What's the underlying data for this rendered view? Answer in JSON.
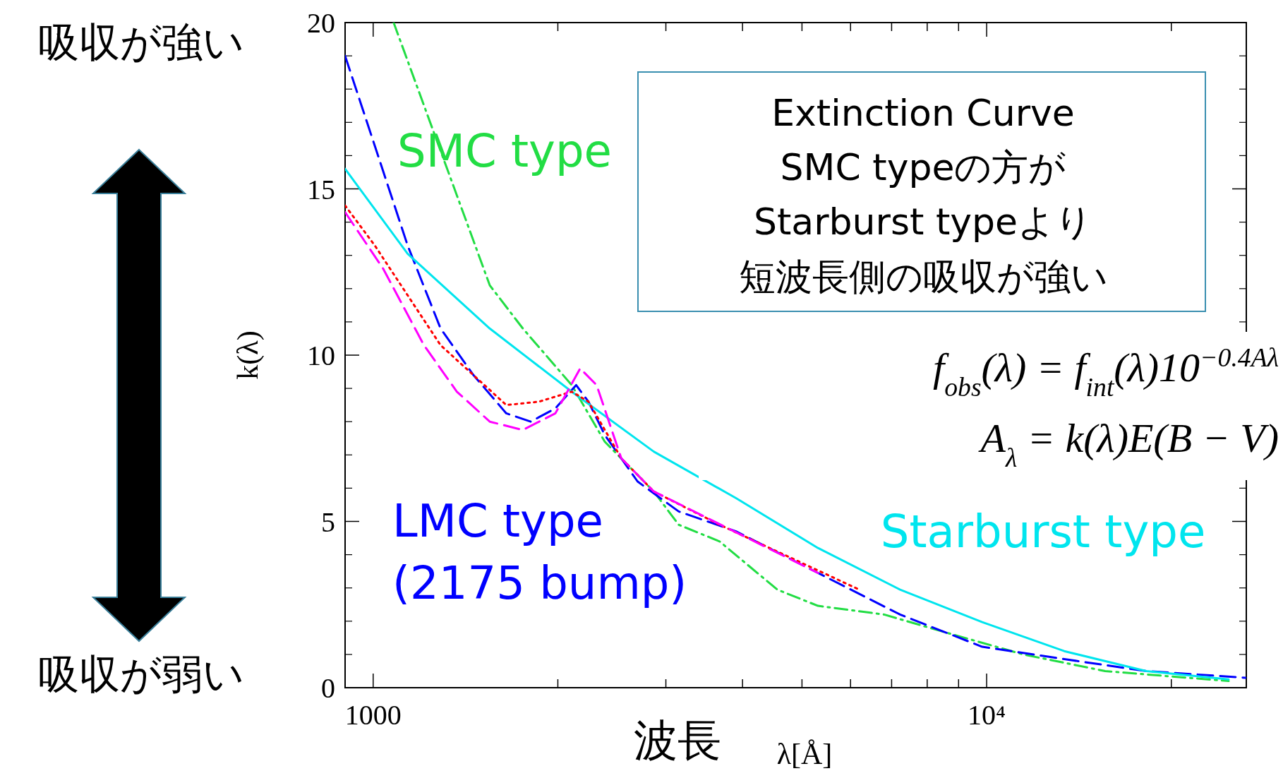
{
  "chart_data": {
    "type": "line",
    "log": "x",
    "xlabel": "λ[Å]",
    "ylabel": "k(λ)",
    "xlim": [
      900,
      26500
    ],
    "ylim": [
      0,
      20
    ],
    "xticks": [
      {
        "value": 1000,
        "label": "1000"
      },
      {
        "value": 2000,
        "label": null
      },
      {
        "value": 3000,
        "label": null
      },
      {
        "value": 4000,
        "label": null
      },
      {
        "value": 5000,
        "label": null
      },
      {
        "value": 6000,
        "label": null
      },
      {
        "value": 7000,
        "label": null
      },
      {
        "value": 8000,
        "label": null
      },
      {
        "value": 9000,
        "label": null
      },
      {
        "value": 10000,
        "label": "10⁴"
      },
      {
        "value": 20000,
        "label": null
      }
    ],
    "yticks": [
      0,
      5,
      10,
      15,
      20
    ],
    "series": [
      {
        "name": "SMC type",
        "color": "#22dd44",
        "line_style": "dashdot",
        "x": [
          1080,
          1549,
          1754,
          2107,
          2385,
          2867,
          3148,
          3670,
          4557,
          5310,
          6806,
          8430,
          11470,
          15600,
          24800
        ],
        "values": [
          20,
          12.1,
          10.8,
          9.1,
          7.4,
          5.9,
          4.9,
          4.4,
          2.95,
          2.46,
          2.2,
          1.7,
          1.0,
          0.5,
          0.2
        ]
      },
      {
        "name": "LMC type (2175 bump)",
        "color": "#0000ff",
        "line_style": "dashed",
        "x": [
          900,
          1006,
          1138,
          1288,
          1457,
          1648,
          1806,
          1982,
          2142,
          2243,
          2385,
          2698,
          3148,
          3903,
          5310,
          7226,
          9834,
          13380,
          18200,
          26400
        ],
        "values": [
          19.0,
          16.3,
          13.3,
          10.8,
          9.4,
          8.25,
          8.0,
          8.4,
          9.1,
          8.6,
          7.6,
          6.2,
          5.3,
          4.7,
          3.45,
          2.2,
          1.23,
          0.86,
          0.5,
          0.3
        ]
      },
      {
        "name": "Starburst type",
        "color": "#00e5ee",
        "line_style": "solid",
        "x": [
          900,
          1138,
          1549,
          2107,
          2867,
          3903,
          5310,
          7226,
          9834,
          13380,
          18200,
          24800
        ],
        "values": [
          15.6,
          13.05,
          10.8,
          8.9,
          7.1,
          5.7,
          4.2,
          2.95,
          1.97,
          1.1,
          0.5,
          0.25
        ]
      },
      {
        "color": "#ff0000",
        "line_style": "dotted",
        "x": [
          900,
          1006,
          1138,
          1288,
          1457,
          1648,
          1864,
          2107,
          2243,
          2537,
          2867,
          3670,
          6200
        ],
        "values": [
          14.5,
          13.3,
          11.8,
          10.3,
          9.4,
          8.5,
          8.6,
          8.9,
          8.6,
          6.9,
          5.9,
          4.9,
          2.95
        ]
      },
      {
        "color": "#ff00ff",
        "line_style": "dashed",
        "x": [
          900,
          1038,
          1210,
          1369,
          1549,
          1754,
          1982,
          2175,
          2313,
          2537,
          2867,
          5310
        ],
        "values": [
          14.3,
          12.6,
          10.3,
          8.9,
          8.0,
          7.75,
          8.25,
          9.6,
          9.1,
          6.9,
          5.9,
          3.45
        ]
      }
    ],
    "annotations": [
      "吸収が強い",
      "吸収が弱い",
      "波長",
      "Extinction Curve",
      "SMC typeの方が",
      "Starburst typeより",
      "短波長側の吸収が強い",
      "f$_{obs}$(λ) = f$_{int}$(λ)10$^{−0.4Aλ}$",
      "A$_{λ}$ = k(λ)E(B − V)"
    ]
  }
}
